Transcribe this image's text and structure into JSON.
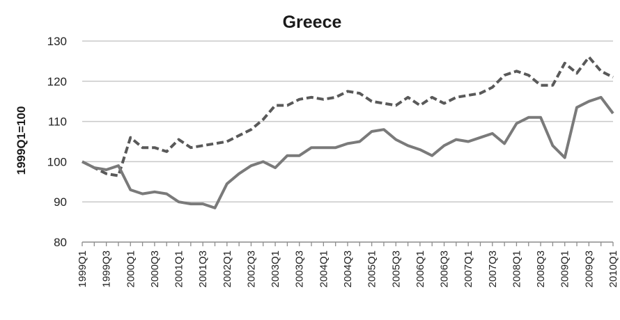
{
  "chart_data": {
    "type": "line",
    "title": "Greece",
    "xlabel": "",
    "ylabel": "1999Q1=100",
    "ylim": [
      80,
      130
    ],
    "yticks": [
      "80",
      "90",
      "100",
      "110",
      "120",
      "130"
    ],
    "grid": true,
    "legend": "none",
    "x": [
      "1999Q1",
      "1999Q2",
      "1999Q3",
      "1999Q4",
      "2000Q1",
      "2000Q2",
      "2000Q3",
      "2000Q4",
      "2001Q1",
      "2001Q2",
      "2001Q3",
      "2001Q4",
      "2002Q1",
      "2002Q2",
      "2002Q3",
      "2002Q4",
      "2003Q1",
      "2003Q2",
      "2003Q3",
      "2003Q4",
      "2004Q1",
      "2004Q2",
      "2004Q3",
      "2004Q4",
      "2005Q1",
      "2005Q2",
      "2005Q3",
      "2005Q4",
      "2006Q1",
      "2006Q2",
      "2006Q3",
      "2006Q4",
      "2007Q1",
      "2007Q2",
      "2007Q3",
      "2007Q4",
      "2008Q1",
      "2008Q2",
      "2008Q3",
      "2008Q4",
      "2009Q1",
      "2009Q2",
      "2009Q3",
      "2009Q4",
      "2010Q1"
    ],
    "xticklabels": [
      "1999Q1",
      "1999Q3",
      "2000Q1",
      "2000Q3",
      "2001Q1",
      "2001Q3",
      "2002Q1",
      "2002Q3",
      "2003Q1",
      "2003Q3",
      "2004Q1",
      "2004Q3",
      "2005Q1",
      "2005Q3",
      "2006Q1",
      "2006Q3",
      "2007Q1",
      "2007Q3",
      "2008Q1",
      "2008Q3",
      "2009Q1",
      "2009Q3",
      "2010Q1"
    ],
    "series": [
      {
        "style": "dashed",
        "color": "#595959",
        "values": [
          100,
          98.5,
          97,
          96.5,
          106,
          103.5,
          103.5,
          102.5,
          105.5,
          103.5,
          104,
          104.5,
          105,
          106.5,
          108,
          110.5,
          114,
          114,
          115.5,
          116,
          115.5,
          116,
          117.5,
          117,
          115,
          114.5,
          114,
          116,
          114,
          116,
          114.5,
          116,
          116.5,
          117,
          118.5,
          121.5,
          122.5,
          121.5,
          119,
          119,
          124.5,
          122,
          126,
          122.5,
          121
        ]
      },
      {
        "style": "solid",
        "color": "#7a7a7a",
        "values": [
          100,
          98.5,
          98,
          99,
          93,
          92,
          92.5,
          92,
          90,
          89.5,
          89.5,
          88.5,
          94.5,
          97,
          99,
          100,
          98.5,
          101.5,
          101.5,
          103.5,
          103.5,
          103.5,
          104.5,
          105,
          107.5,
          108,
          105.5,
          104,
          103,
          101.5,
          104,
          105.5,
          105,
          106,
          107,
          104.5,
          109.5,
          111,
          111,
          104,
          101,
          113.5,
          115,
          116,
          112
        ]
      }
    ]
  }
}
